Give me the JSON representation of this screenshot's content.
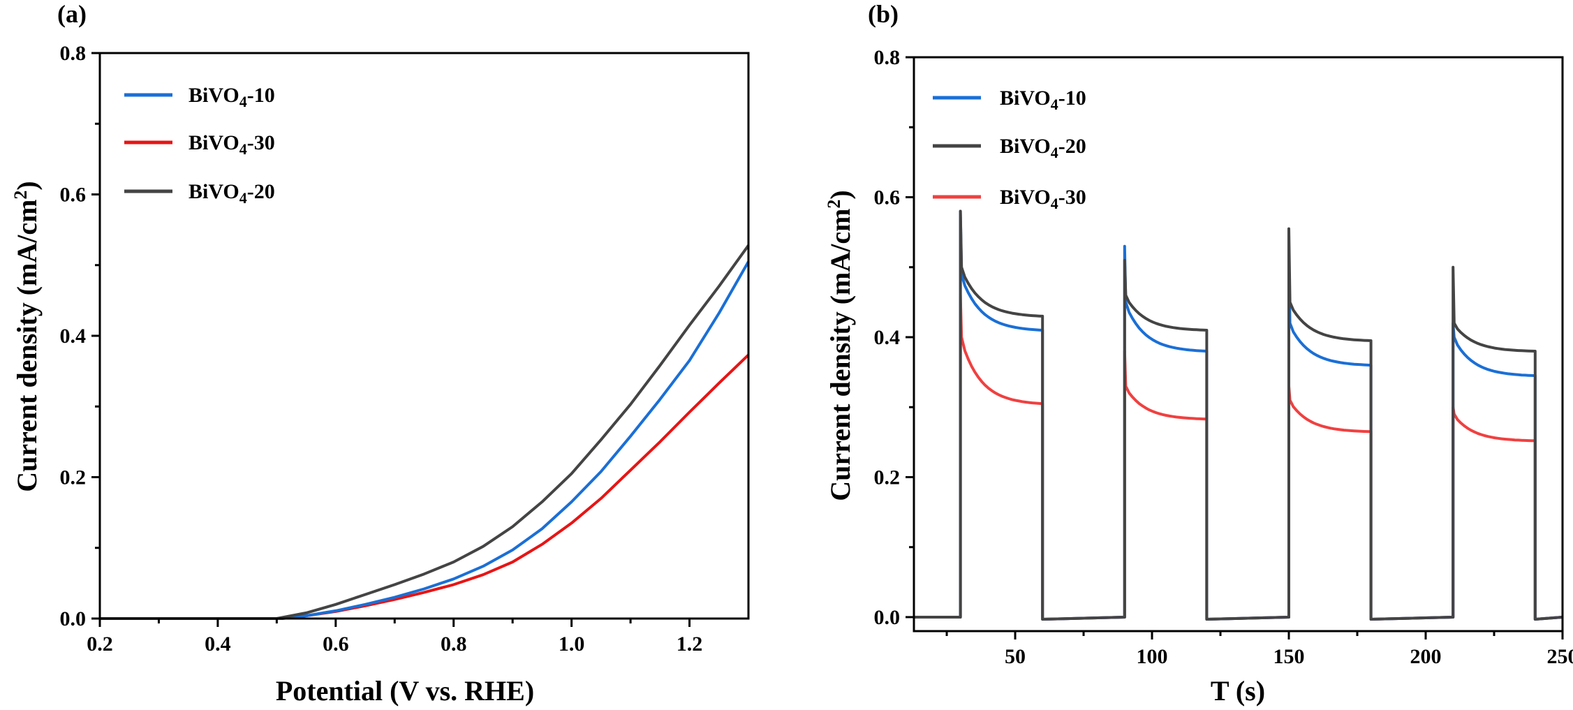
{
  "chart_data": [
    {
      "panel": "(a)",
      "type": "line",
      "title": "",
      "xlabel": "Potential (V vs. RHE)",
      "ylabel_main": "Current density (mA/cm",
      "ylabel_sup": "2",
      "ylabel_end": ")",
      "xlim": [
        0.2,
        1.3
      ],
      "ylim": [
        0.0,
        0.8
      ],
      "x_ticks": [
        0.2,
        0.4,
        0.6,
        0.8,
        1.0,
        1.2
      ],
      "x_tick_labels": [
        "0.2",
        "0.4",
        "0.6",
        "0.8",
        "1.0",
        "1.2"
      ],
      "y_ticks": [
        0.0,
        0.2,
        0.4,
        0.6,
        0.8
      ],
      "y_tick_labels": [
        "0.0",
        "0.2",
        "0.4",
        "0.6",
        "0.8"
      ],
      "legend_position": "top-left",
      "series": [
        {
          "name_main": "BiVO",
          "name_sub": "4",
          "name_end": "-10",
          "color": "#1a6fd6",
          "x": [
            0.2,
            0.5,
            0.55,
            0.6,
            0.65,
            0.7,
            0.75,
            0.8,
            0.85,
            0.9,
            0.95,
            1.0,
            1.05,
            1.1,
            1.15,
            1.2,
            1.25,
            1.3
          ],
          "y": [
            0.0,
            0.0,
            0.004,
            0.011,
            0.02,
            0.03,
            0.042,
            0.056,
            0.074,
            0.097,
            0.127,
            0.165,
            0.208,
            0.258,
            0.31,
            0.365,
            0.432,
            0.505
          ]
        },
        {
          "name_main": "BiVO",
          "name_sub": "4",
          "name_end": "-30",
          "color": "#e81414",
          "x": [
            0.2,
            0.51,
            0.55,
            0.6,
            0.65,
            0.7,
            0.75,
            0.8,
            0.85,
            0.9,
            0.95,
            1.0,
            1.05,
            1.1,
            1.15,
            1.2,
            1.25,
            1.3
          ],
          "y": [
            0.0,
            0.0,
            0.004,
            0.01,
            0.018,
            0.027,
            0.037,
            0.048,
            0.062,
            0.08,
            0.105,
            0.135,
            0.17,
            0.21,
            0.25,
            0.292,
            0.333,
            0.373
          ]
        },
        {
          "name_main": "BiVO",
          "name_sub": "4",
          "name_end": "-20",
          "color": "#444444",
          "x": [
            0.2,
            0.5,
            0.55,
            0.6,
            0.65,
            0.7,
            0.75,
            0.8,
            0.85,
            0.9,
            0.95,
            1.0,
            1.05,
            1.1,
            1.15,
            1.2,
            1.25,
            1.3
          ],
          "y": [
            0.0,
            0.0,
            0.008,
            0.02,
            0.034,
            0.048,
            0.063,
            0.08,
            0.102,
            0.13,
            0.165,
            0.205,
            0.253,
            0.303,
            0.358,
            0.415,
            0.47,
            0.528
          ]
        }
      ]
    },
    {
      "panel": "(b)",
      "type": "line",
      "title": "",
      "xlabel": "T (s)",
      "ylabel_main": "Current density (mA/cm",
      "ylabel_sup": "2",
      "ylabel_end": ")",
      "xlim": [
        13,
        250
      ],
      "ylim": [
        -0.02,
        0.8
      ],
      "x_ticks": [
        50,
        100,
        150,
        200,
        250
      ],
      "x_tick_labels": [
        "50",
        "100",
        "150",
        "200",
        "250"
      ],
      "y_ticks": [
        0.0,
        0.2,
        0.4,
        0.6,
        0.8
      ],
      "y_tick_labels": [
        "0.0",
        "0.2",
        "0.4",
        "0.6",
        "0.8"
      ],
      "legend_position": "top-left",
      "light_periods": [
        [
          30,
          60
        ],
        [
          90,
          120
        ],
        [
          150,
          180
        ],
        [
          210,
          240
        ]
      ],
      "series": [
        {
          "name_main": "BiVO",
          "name_sub": "4",
          "name_end": "-10",
          "color": "#1a6fd6",
          "peaks": [
            0.58,
            0.53,
            0.52,
            0.42
          ],
          "starts": [
            0.49,
            0.45,
            0.42,
            0.4
          ],
          "ends": [
            0.41,
            0.38,
            0.36,
            0.345
          ]
        },
        {
          "name_main": "BiVO",
          "name_sub": "4",
          "name_end": "-20",
          "color": "#444444",
          "peaks": [
            0.58,
            0.51,
            0.555,
            0.5
          ],
          "starts": [
            0.5,
            0.46,
            0.45,
            0.42
          ],
          "ends": [
            0.43,
            0.41,
            0.395,
            0.38
          ]
        },
        {
          "name_main": "BiVO",
          "name_sub": "4",
          "name_end": "-30",
          "color": "#f04040",
          "peaks": [
            0.46,
            0.38,
            0.33,
            0.3
          ],
          "starts": [
            0.4,
            0.33,
            0.31,
            0.29
          ],
          "ends": [
            0.305,
            0.283,
            0.265,
            0.252
          ]
        }
      ]
    }
  ]
}
